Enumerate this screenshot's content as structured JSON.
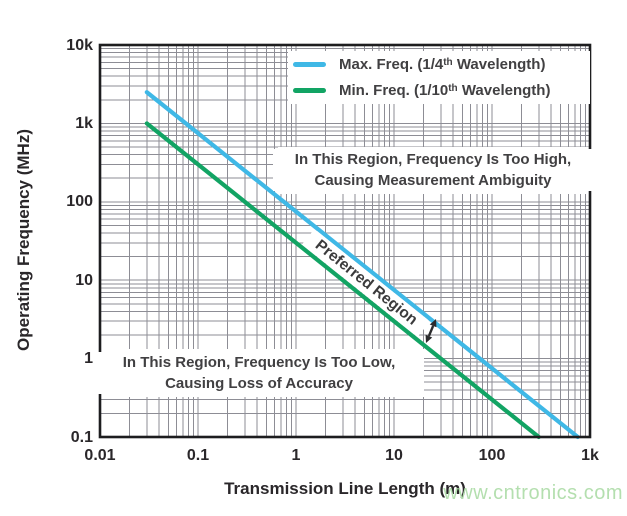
{
  "chart_data": {
    "type": "line",
    "log_x": true,
    "log_y": true,
    "title": "",
    "xlabel": "Transmission Line Length (m)",
    "ylabel": "Operating Frequency (MHz)",
    "xlim": [
      0.01,
      1000
    ],
    "ylim": [
      0.1,
      10000
    ],
    "x_tick_values": [
      0.01,
      0.1,
      1,
      10,
      100,
      1000
    ],
    "x_tick_labels": [
      "0.01",
      "0.1",
      "1",
      "10",
      "100",
      "1k"
    ],
    "y_tick_values": [
      0.1,
      1,
      10,
      100,
      1000,
      10000
    ],
    "y_tick_labels": [
      "0.1",
      "1",
      "10",
      "100",
      "1k",
      "10k"
    ],
    "grid": "log minor gridlines on both axes",
    "legend_position": "top-right inside plot",
    "series": [
      {
        "name": "Max. Freq. (1/4th Wavelength)",
        "color": "#3fb8e6",
        "relation": "f(MHz) = 75 / L(m)",
        "points": [
          [
            0.03,
            2500
          ],
          [
            750,
            0.1
          ]
        ]
      },
      {
        "name": "Min. Freq. (1/10th Wavelength)",
        "color": "#12a464",
        "relation": "f(MHz) = 30 / L(m)",
        "points": [
          [
            0.03,
            1000
          ],
          [
            300,
            0.1
          ]
        ]
      }
    ]
  },
  "legend": {
    "items": [
      {
        "pre": "Max. Freq. (1/4",
        "sup": "th",
        "post": " Wavelength)"
      },
      {
        "pre": "Min. Freq. (1/10",
        "sup": "th",
        "post": " Wavelength)"
      }
    ]
  },
  "annotations": {
    "too_high": {
      "line1": "In This Region, Frequency Is Too High,",
      "line2": "Causing Measurement Ambiguity"
    },
    "preferred": "Preferred Region",
    "too_low": {
      "line1": "In This Region, Frequency Is Too Low,",
      "line2": "Causing Loss of Accuracy"
    }
  },
  "watermark": "www.cntronics.com",
  "colors": {
    "max_freq_line": "#3fb8e6",
    "min_freq_line": "#12a464",
    "gridline": "#8d8d95",
    "plot_border": "#1d1d1f",
    "text": "#414042",
    "watermark": "#b4dfaf"
  }
}
